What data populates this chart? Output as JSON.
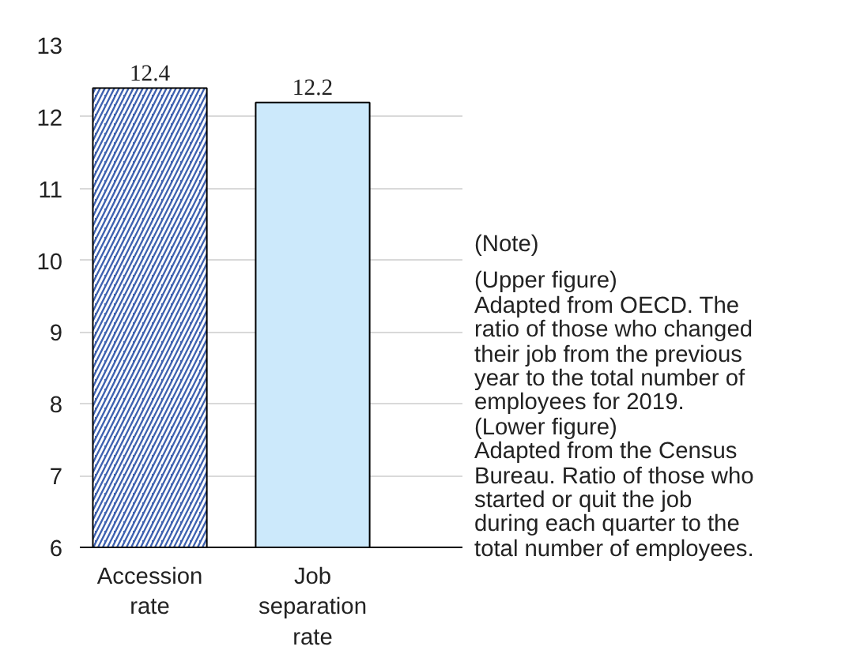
{
  "chart_data": {
    "type": "bar",
    "categories": [
      "Accession rate",
      "Job separation rate"
    ],
    "values": [
      12.4,
      12.2
    ],
    "colors": [
      "#3f62b0",
      "#cce9fb"
    ],
    "ylim": [
      6,
      13
    ],
    "yticks": [
      6,
      7,
      8,
      9,
      10,
      11,
      12,
      13
    ],
    "grid": "y",
    "data_labels": true,
    "annotations": [
      "(Note)",
      "(Upper figure)",
      "Adapted from OECD. The ratio of those who changed their job from the previous year to the total number of employees for 2019.",
      "(Lower figure)",
      "Adapted from the Census Bureau. Ratio of those who started or quit the job during each quarter to the total number of employees."
    ]
  }
}
